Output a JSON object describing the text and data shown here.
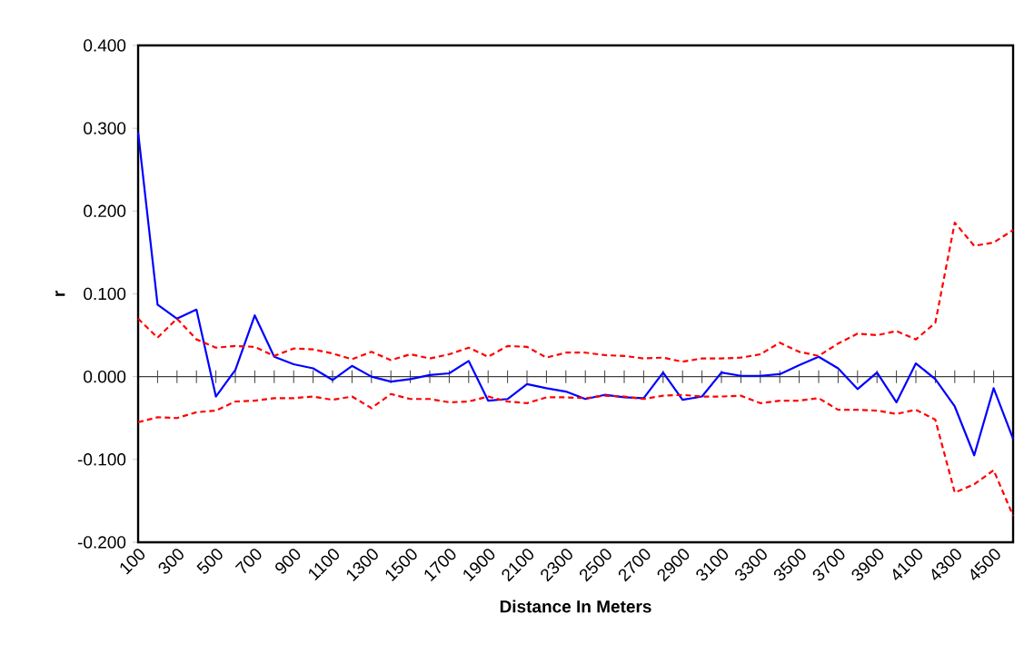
{
  "chart_data": {
    "type": "line",
    "xlabel": "Distance In Meters",
    "ylabel": "r",
    "categories": [
      "100",
      null,
      "300",
      null,
      "500",
      null,
      "700",
      null,
      "900",
      null,
      "1100",
      null,
      "1300",
      null,
      "1500",
      null,
      "1700",
      null,
      "1900",
      null,
      "2100",
      null,
      "2300",
      null,
      "2500",
      null,
      "2700",
      null,
      "2900",
      null,
      "3100",
      null,
      "3300",
      null,
      "3500",
      null,
      "3700",
      null,
      "3900",
      null,
      "4100",
      null,
      "4300",
      null,
      "4500",
      null
    ],
    "ylim": [
      -0.2,
      0.4
    ],
    "yticks": [
      {
        "value": -0.2,
        "label": "-0.200"
      },
      {
        "value": -0.1,
        "label": "-0.100"
      },
      {
        "value": 0,
        "label": "0.000"
      },
      {
        "value": 0.1,
        "label": "0.100"
      },
      {
        "value": 0.2,
        "label": "0.200"
      },
      {
        "value": 0.3,
        "label": "0.300"
      },
      {
        "value": 0.4,
        "label": "0.400"
      }
    ],
    "marker": "none",
    "series": [
      {
        "color": "#0000ff",
        "line_style": "solid",
        "values": [
          0.295,
          0.087,
          0.07,
          0.081,
          -0.024,
          0.008,
          0.074,
          0.024,
          0.015,
          0.01,
          -0.004,
          0.013,
          0.0,
          -0.006,
          -0.003,
          0.002,
          0.004,
          0.019,
          -0.029,
          -0.027,
          -0.009,
          -0.014,
          -0.018,
          -0.027,
          -0.022,
          -0.025,
          -0.026,
          0.005,
          -0.028,
          -0.024,
          0.005,
          0.001,
          0.001,
          0.003,
          0.014,
          0.024,
          0.01,
          -0.015,
          0.005,
          -0.031,
          0.016,
          -0.003,
          -0.036,
          -0.095,
          -0.014,
          -0.075
        ]
      },
      {
        "color": "#ff0000",
        "line_style": "dashed",
        "values": [
          0.07,
          0.047,
          0.07,
          0.045,
          0.035,
          0.037,
          0.036,
          0.025,
          0.034,
          0.033,
          0.028,
          0.021,
          0.03,
          0.02,
          0.027,
          0.022,
          0.027,
          0.035,
          0.024,
          0.037,
          0.036,
          0.023,
          0.029,
          0.029,
          0.026,
          0.025,
          0.022,
          0.023,
          0.018,
          0.022,
          0.022,
          0.023,
          0.027,
          0.041,
          0.03,
          0.025,
          0.04,
          0.052,
          0.05,
          0.055,
          0.045,
          0.065,
          0.186,
          0.158,
          0.162,
          0.177
        ]
      },
      {
        "color": "#ff0000",
        "line_style": "dashed",
        "values": [
          -0.055,
          -0.049,
          -0.05,
          -0.043,
          -0.041,
          -0.03,
          -0.029,
          -0.026,
          -0.026,
          -0.024,
          -0.028,
          -0.024,
          -0.038,
          -0.021,
          -0.027,
          -0.027,
          -0.031,
          -0.03,
          -0.024,
          -0.03,
          -0.032,
          -0.025,
          -0.025,
          -0.026,
          -0.023,
          -0.024,
          -0.027,
          -0.023,
          -0.022,
          -0.024,
          -0.024,
          -0.023,
          -0.032,
          -0.029,
          -0.029,
          -0.026,
          -0.04,
          -0.04,
          -0.041,
          -0.045,
          -0.04,
          -0.052,
          -0.14,
          -0.13,
          -0.113,
          -0.168
        ]
      }
    ]
  }
}
